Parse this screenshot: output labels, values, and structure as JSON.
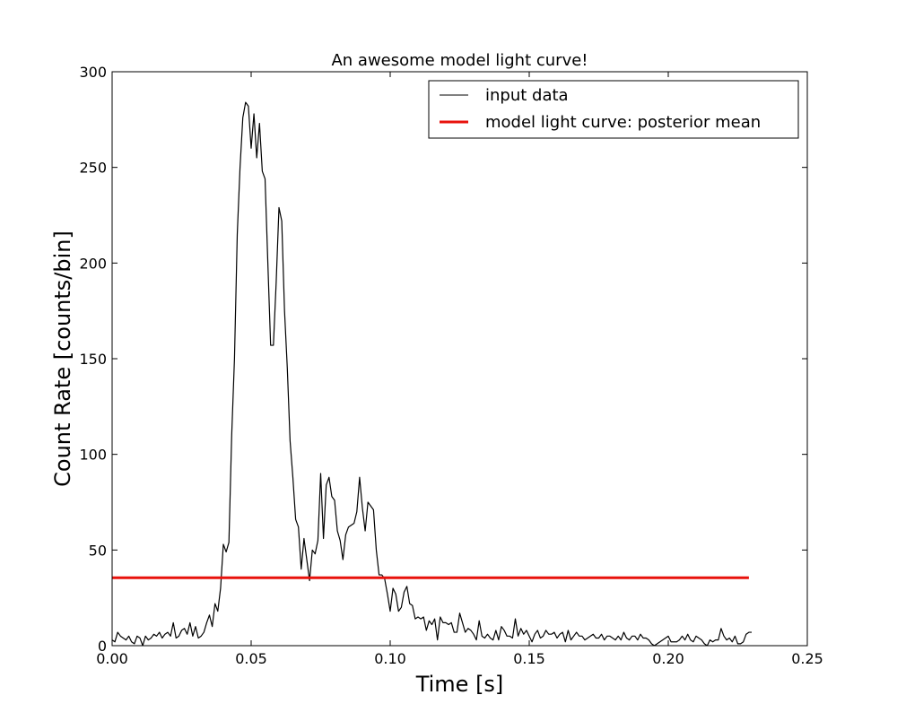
{
  "chart_data": {
    "type": "line",
    "title": "An awesome model light curve!",
    "xlabel": "Time [s]",
    "ylabel": "Count Rate [counts/bin]",
    "xlim": [
      0.0,
      0.25
    ],
    "ylim": [
      0,
      300
    ],
    "xticks": [
      0.0,
      0.05,
      0.1,
      0.15,
      0.2,
      0.25
    ],
    "xtick_labels": [
      "0.00",
      "0.05",
      "0.10",
      "0.15",
      "0.20",
      "0.25"
    ],
    "yticks": [
      0,
      50,
      100,
      150,
      200,
      250,
      300
    ],
    "ytick_labels": [
      "0",
      "50",
      "100",
      "150",
      "200",
      "250",
      "300"
    ],
    "grid": false,
    "legend": {
      "placement": "top-right"
    },
    "series": [
      {
        "name": "input data",
        "color": "#000000",
        "x_start": 0.0,
        "x_step": 0.001,
        "values": [
          3,
          2,
          7,
          5,
          4,
          3,
          5,
          2,
          1,
          5,
          4,
          0,
          5,
          3,
          4,
          6,
          5,
          7,
          4,
          6,
          7,
          5,
          12,
          4,
          5,
          8,
          9,
          6,
          12,
          5,
          10,
          4,
          5,
          7,
          12,
          16,
          10,
          22,
          18,
          30,
          53,
          49,
          54,
          110,
          150,
          215,
          250,
          276,
          284,
          282,
          260,
          278,
          255,
          273,
          248,
          244,
          200,
          157,
          157,
          190,
          229,
          222,
          175,
          145,
          107,
          88,
          66,
          62,
          40,
          56,
          45,
          34,
          50,
          48,
          55,
          90,
          56,
          84,
          88,
          78,
          76,
          60,
          55,
          45,
          58,
          62,
          63,
          64,
          70,
          88,
          72,
          60,
          75,
          73,
          71,
          50,
          37,
          37,
          35,
          27,
          18,
          30,
          27,
          18,
          20,
          28,
          31,
          22,
          21,
          14,
          15,
          14,
          15,
          8,
          13,
          11,
          14,
          3,
          15,
          12,
          12,
          11,
          12,
          7,
          7,
          17,
          12,
          7,
          9,
          8,
          6,
          3,
          13,
          5,
          4,
          6,
          4,
          3,
          8,
          3,
          10,
          8,
          5,
          5,
          4,
          14,
          5,
          9,
          6,
          8,
          5,
          2,
          6,
          8,
          4,
          5,
          8,
          6,
          6,
          7,
          4,
          6,
          7,
          2,
          8,
          3,
          5,
          7,
          5,
          5,
          3,
          4,
          5,
          6,
          4,
          4,
          6,
          3,
          5,
          5,
          4,
          3,
          5,
          3,
          7,
          4,
          3,
          5,
          5,
          3,
          6,
          4,
          4,
          3,
          1,
          0,
          1,
          2,
          3,
          4,
          5,
          2,
          2,
          2,
          3,
          5,
          3,
          6,
          3,
          2,
          5,
          4,
          3,
          1,
          0,
          3,
          2,
          3,
          3,
          9,
          5,
          3,
          4,
          2,
          5,
          1,
          1,
          2,
          6,
          7,
          7
        ]
      },
      {
        "name": "model light curve: posterior mean",
        "color": "#e8120c",
        "x": [
          0.0,
          0.229
        ],
        "values": [
          35.5,
          35.5
        ]
      }
    ]
  }
}
